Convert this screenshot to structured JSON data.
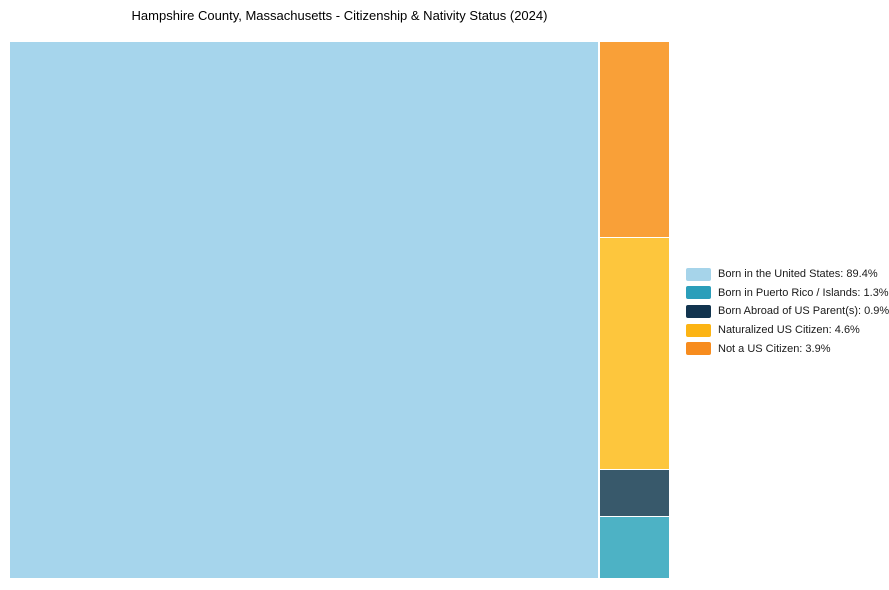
{
  "chart_data": {
    "type": "treemap",
    "title": "Hampshire County, Massachusetts - Citizenship & Nativity Status (2024)",
    "unit": "%",
    "categories": [
      "Born in the United States",
      "Born in Puerto Rico / Islands",
      "Born Abroad of US Parent(s)",
      "Naturalized US Citizen",
      "Not a US Citizen"
    ],
    "values": [
      89.4,
      1.3,
      0.9,
      4.6,
      3.9
    ],
    "legend_position": "right-middle",
    "background_color": "#ffffff",
    "layout_hint": "single large tile left (89.4%), remaining tiles stacked in right column top-to-bottom: Not a US Citizen, Naturalized US Citizen, Born Abroad of US Parent(s), Born in Puerto Rico / Islands"
  },
  "tiles": [
    {
      "name": "Born in the United States",
      "value_pct": 89.4,
      "fill": "#a6d5ec"
    },
    {
      "name": "Born in Puerto Rico / Islands",
      "value_pct": 1.3,
      "fill": "#4db2c5"
    },
    {
      "name": "Born Abroad of US Parent(s)",
      "value_pct": 0.9,
      "fill": "#38596b"
    },
    {
      "name": "Naturalized US Citizen",
      "value_pct": 4.6,
      "fill": "#fdc63d"
    },
    {
      "name": "Not a US Citizen",
      "value_pct": 3.9,
      "fill": "#f9a038"
    }
  ],
  "legend": {
    "items": [
      {
        "label": "Born in the United States: 89.4%",
        "color": "#a6d4ea"
      },
      {
        "label": "Born in Puerto Rico / Islands: 1.3%",
        "color": "#2b9eba"
      },
      {
        "label": "Born Abroad of US Parent(s): 0.9%",
        "color": "#12344f"
      },
      {
        "label": "Naturalized US Citizen: 4.6%",
        "color": "#fcb414"
      },
      {
        "label": "Not a US Citizen: 3.9%",
        "color": "#f78c1e"
      }
    ]
  }
}
